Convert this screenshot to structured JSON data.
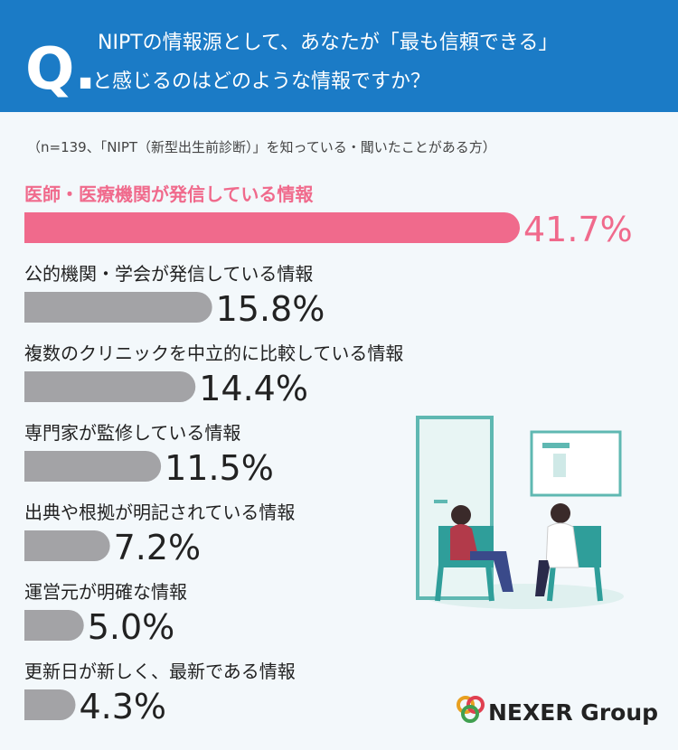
{
  "chart_data": {
    "type": "bar",
    "title_mark": "Q.",
    "title_lines": [
      "NIPTの情報源として、あなたが「最も信頼できる」",
      "と感じるのはどのような情報ですか？"
    ],
    "subtitle": "（n=139、「NIPT（新型出生前診断）」を知っている・聞いたことがある方）",
    "categories": [
      "医師・医療機関が発信している情報",
      "公的機関・学会が発信している情報",
      "複数のクリニックを中立的に比較している情報",
      "専門家が監修している情報",
      "出典や根拠が明記されている情報",
      "運営元が明確な情報",
      "更新日が新しく、最新である情報"
    ],
    "values": [
      41.7,
      15.8,
      14.4,
      11.5,
      7.2,
      5.0,
      4.3
    ],
    "value_labels": [
      "41.7%",
      "15.8%",
      "14.4%",
      "11.5%",
      "7.2%",
      "5.0%",
      "4.3%"
    ],
    "colors": [
      "#f06a8c",
      "#a3a3a6",
      "#a3a3a6",
      "#a3a3a6",
      "#a3a3a6",
      "#a3a3a6",
      "#a3a3a6"
    ],
    "logo": "NEXER Group"
  }
}
